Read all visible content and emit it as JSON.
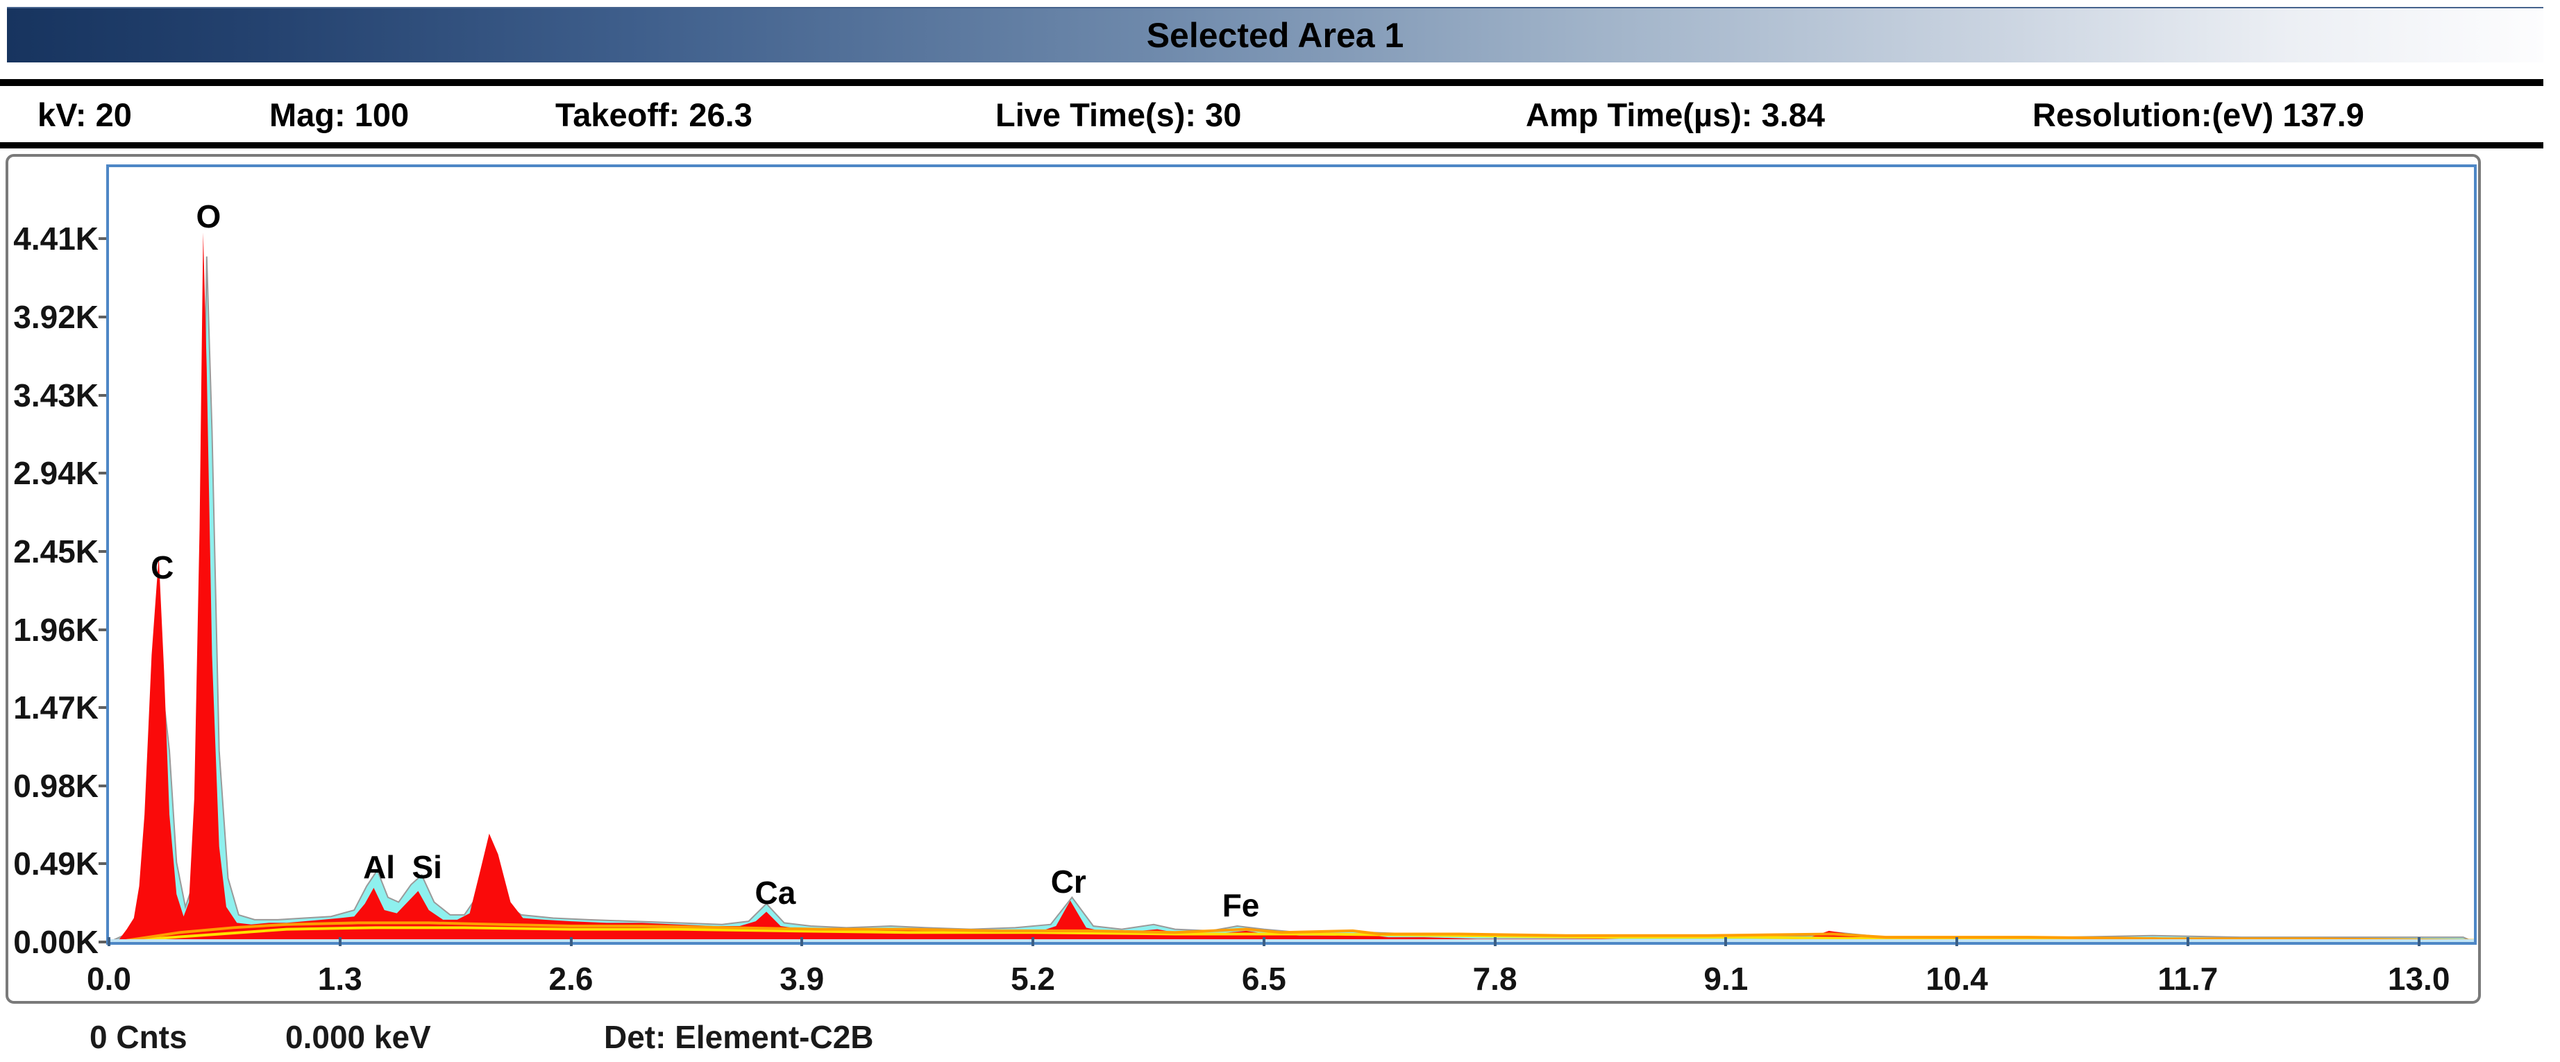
{
  "title": "Selected Area 1",
  "params": [
    "kV: 20",
    "Mag: 100",
    "Takeoff: 26.3",
    "Live Time(s): 30",
    "Amp Time(µs): 3.84",
    "Resolution:(eV) 137.9"
  ],
  "status": {
    "counts": "0 Cnts",
    "energy": "0.000 keV",
    "detector": "Det: Element-C2B"
  },
  "colors": {
    "title_gradient_left": "#17345f",
    "title_gradient_right": "#ffffff",
    "panel_border": "#7a7a7a",
    "plot_border": "#4e87c6",
    "spectrum_red": "#fa0a0a",
    "spectrum_cyan": "#8ef0ee",
    "cyan_edge": "#9a9a9a",
    "background_orange": "#ff9d00",
    "background_yellow": "#ffe100"
  },
  "chart_data": {
    "type": "area",
    "title": "Selected Area 1",
    "xlabel": "",
    "ylabel": "",
    "x_unit": "keV",
    "y_unit": "counts",
    "xlim": [
      0,
      13.31
    ],
    "ylim": [
      0,
      4.86
    ],
    "grid": false,
    "legend": false,
    "x_ticks": [
      {
        "label": "0.0",
        "value": 0
      },
      {
        "label": "1.3",
        "value": 1.3
      },
      {
        "label": "2.6",
        "value": 2.6
      },
      {
        "label": "3.9",
        "value": 3.9
      },
      {
        "label": "5.2",
        "value": 5.2
      },
      {
        "label": "6.5",
        "value": 6.5
      },
      {
        "label": "7.8",
        "value": 7.8
      },
      {
        "label": "9.1",
        "value": 9.1
      },
      {
        "label": "10.4",
        "value": 10.4
      },
      {
        "label": "11.7",
        "value": 11.7
      },
      {
        "label": "13.0",
        "value": 13.0
      }
    ],
    "y_ticks": [
      {
        "label": "4.41K",
        "value": 4.41
      },
      {
        "label": "3.92K",
        "value": 3.92
      },
      {
        "label": "3.43K",
        "value": 3.43
      },
      {
        "label": "2.94K",
        "value": 2.94
      },
      {
        "label": "2.45K",
        "value": 2.45
      },
      {
        "label": "1.96K",
        "value": 1.96
      },
      {
        "label": "1.47K",
        "value": 1.47
      },
      {
        "label": "0.98K",
        "value": 0.98
      },
      {
        "label": "0.49K",
        "value": 0.49
      },
      {
        "label": "0.00K",
        "value": 0
      }
    ],
    "element_labels": [
      {
        "label": "C",
        "kev": 0.3,
        "counts_k": 2.35
      },
      {
        "label": "O",
        "kev": 0.56,
        "counts_k": 4.55
      },
      {
        "label": "Al",
        "kev": 1.52,
        "counts_k": 0.47
      },
      {
        "label": "Si",
        "kev": 1.79,
        "counts_k": 0.47
      },
      {
        "label": "Ca",
        "kev": 3.75,
        "counts_k": 0.31
      },
      {
        "label": "Cr",
        "kev": 5.4,
        "counts_k": 0.38
      },
      {
        "label": "Fe",
        "kev": 6.37,
        "counts_k": 0.23
      }
    ],
    "series": [
      {
        "name": "reference-spectrum-cyan",
        "style": "filled",
        "color": "#8ef0ee",
        "stroke": "#9a9a9a",
        "points": [
          [
            0,
            0
          ],
          [
            0.1,
            0.05
          ],
          [
            0.16,
            0.12
          ],
          [
            0.22,
            0.45
          ],
          [
            0.27,
            1.1
          ],
          [
            0.3,
            1.6
          ],
          [
            0.34,
            1.2
          ],
          [
            0.38,
            0.5
          ],
          [
            0.43,
            0.22
          ],
          [
            0.47,
            0.35
          ],
          [
            0.51,
            1.3
          ],
          [
            0.55,
            4.3
          ],
          [
            0.58,
            3.2
          ],
          [
            0.62,
            1.2
          ],
          [
            0.67,
            0.4
          ],
          [
            0.73,
            0.17
          ],
          [
            0.82,
            0.14
          ],
          [
            0.95,
            0.14
          ],
          [
            1.1,
            0.15
          ],
          [
            1.25,
            0.16
          ],
          [
            1.38,
            0.2
          ],
          [
            1.45,
            0.35
          ],
          [
            1.51,
            0.45
          ],
          [
            1.57,
            0.28
          ],
          [
            1.63,
            0.25
          ],
          [
            1.7,
            0.36
          ],
          [
            1.76,
            0.42
          ],
          [
            1.83,
            0.25
          ],
          [
            1.92,
            0.17
          ],
          [
            2,
            0.17
          ],
          [
            2.08,
            0.3
          ],
          [
            2.15,
            0.4
          ],
          [
            2.22,
            0.25
          ],
          [
            2.32,
            0.17
          ],
          [
            2.5,
            0.15
          ],
          [
            2.7,
            0.14
          ],
          [
            2.95,
            0.13
          ],
          [
            3.2,
            0.12
          ],
          [
            3.45,
            0.11
          ],
          [
            3.6,
            0.13
          ],
          [
            3.7,
            0.24
          ],
          [
            3.8,
            0.12
          ],
          [
            3.95,
            0.1
          ],
          [
            4.15,
            0.09
          ],
          [
            4.4,
            0.1
          ],
          [
            4.6,
            0.09
          ],
          [
            4.85,
            0.08
          ],
          [
            5.1,
            0.09
          ],
          [
            5.3,
            0.11
          ],
          [
            5.42,
            0.28
          ],
          [
            5.54,
            0.1
          ],
          [
            5.7,
            0.08
          ],
          [
            5.88,
            0.11
          ],
          [
            6,
            0.08
          ],
          [
            6.2,
            0.07
          ],
          [
            6.35,
            0.1
          ],
          [
            6.5,
            0.08
          ],
          [
            6.7,
            0.06
          ],
          [
            6.95,
            0.07
          ],
          [
            7.1,
            0.06
          ],
          [
            7.35,
            0.05
          ],
          [
            7.7,
            0.04
          ],
          [
            8.1,
            0.04
          ],
          [
            8.6,
            0.04
          ],
          [
            9.1,
            0.03
          ],
          [
            9.6,
            0.04
          ],
          [
            9.72,
            0.06
          ],
          [
            10,
            0.03
          ],
          [
            10.5,
            0.03
          ],
          [
            11,
            0.03
          ],
          [
            11.5,
            0.04
          ],
          [
            12,
            0.03
          ],
          [
            12.6,
            0.03
          ],
          [
            13.25,
            0.03
          ],
          [
            13.31,
            0
          ]
        ]
      },
      {
        "name": "acquired-spectrum-red",
        "style": "filled",
        "color": "#fa0a0a",
        "stroke": "none",
        "points": [
          [
            0,
            0
          ],
          [
            0.06,
            0.02
          ],
          [
            0.1,
            0.08
          ],
          [
            0.14,
            0.15
          ],
          [
            0.17,
            0.35
          ],
          [
            0.2,
            0.8
          ],
          [
            0.24,
            1.8
          ],
          [
            0.28,
            2.42
          ],
          [
            0.31,
            1.7
          ],
          [
            0.34,
            0.8
          ],
          [
            0.38,
            0.3
          ],
          [
            0.42,
            0.16
          ],
          [
            0.45,
            0.25
          ],
          [
            0.48,
            0.9
          ],
          [
            0.51,
            2.6
          ],
          [
            0.53,
            4.45
          ],
          [
            0.55,
            3.6
          ],
          [
            0.58,
            1.8
          ],
          [
            0.62,
            0.6
          ],
          [
            0.66,
            0.22
          ],
          [
            0.72,
            0.12
          ],
          [
            0.8,
            0.11
          ],
          [
            0.9,
            0.12
          ],
          [
            1,
            0.12
          ],
          [
            1.1,
            0.13
          ],
          [
            1.2,
            0.14
          ],
          [
            1.3,
            0.15
          ],
          [
            1.38,
            0.16
          ],
          [
            1.44,
            0.24
          ],
          [
            1.49,
            0.34
          ],
          [
            1.55,
            0.2
          ],
          [
            1.62,
            0.18
          ],
          [
            1.68,
            0.25
          ],
          [
            1.74,
            0.32
          ],
          [
            1.8,
            0.2
          ],
          [
            1.88,
            0.14
          ],
          [
            1.96,
            0.14
          ],
          [
            2.03,
            0.18
          ],
          [
            2.09,
            0.45
          ],
          [
            2.14,
            0.68
          ],
          [
            2.19,
            0.55
          ],
          [
            2.26,
            0.25
          ],
          [
            2.33,
            0.15
          ],
          [
            2.45,
            0.14
          ],
          [
            2.6,
            0.13
          ],
          [
            2.8,
            0.12
          ],
          [
            3,
            0.12
          ],
          [
            3.2,
            0.11
          ],
          [
            3.4,
            0.1
          ],
          [
            3.55,
            0.1
          ],
          [
            3.64,
            0.13
          ],
          [
            3.7,
            0.19
          ],
          [
            3.78,
            0.1
          ],
          [
            3.9,
            0.08
          ],
          [
            4.1,
            0.08
          ],
          [
            4.3,
            0.07
          ],
          [
            4.5,
            0.08
          ],
          [
            4.7,
            0.07
          ],
          [
            4.9,
            0.07
          ],
          [
            5.1,
            0.07
          ],
          [
            5.25,
            0.07
          ],
          [
            5.33,
            0.1
          ],
          [
            5.41,
            0.26
          ],
          [
            5.5,
            0.09
          ],
          [
            5.62,
            0.06
          ],
          [
            5.8,
            0.07
          ],
          [
            5.9,
            0.08
          ],
          [
            6,
            0.06
          ],
          [
            6.15,
            0.05
          ],
          [
            6.3,
            0.06
          ],
          [
            6.4,
            0.07
          ],
          [
            6.52,
            0.05
          ],
          [
            6.7,
            0.04
          ],
          [
            6.9,
            0.04
          ],
          [
            7.05,
            0.05
          ],
          [
            7.2,
            0.03
          ],
          [
            7.4,
            0.03
          ],
          [
            7.7,
            0.02
          ],
          [
            8,
            0.02
          ],
          [
            8.4,
            0.02
          ],
          [
            8.8,
            0.01
          ],
          [
            9.2,
            0.01
          ],
          [
            9.55,
            0.02
          ],
          [
            9.68,
            0.07
          ],
          [
            9.8,
            0.05
          ],
          [
            9.95,
            0.02
          ],
          [
            10.2,
            0.01
          ],
          [
            10.6,
            0.01
          ],
          [
            11,
            0.01
          ],
          [
            11.3,
            0.02
          ],
          [
            11.5,
            0.03
          ],
          [
            11.7,
            0.02
          ],
          [
            12,
            0.01
          ],
          [
            12.5,
            0.01
          ],
          [
            13,
            0.01
          ],
          [
            13.31,
            0
          ]
        ]
      },
      {
        "name": "background-fit-yellow",
        "style": "line",
        "color": "#ffe100",
        "stroke": "#ffe100",
        "points": [
          [
            0.1,
            0.01
          ],
          [
            0.5,
            0.04
          ],
          [
            1,
            0.08
          ],
          [
            1.5,
            0.09
          ],
          [
            2,
            0.09
          ],
          [
            2.6,
            0.08
          ],
          [
            3.2,
            0.08
          ],
          [
            3.8,
            0.07
          ],
          [
            4.5,
            0.06
          ],
          [
            5.2,
            0.06
          ],
          [
            6,
            0.05
          ],
          [
            6.8,
            0.05
          ],
          [
            7.6,
            0.04
          ],
          [
            8.4,
            0.03
          ],
          [
            9.2,
            0.03
          ],
          [
            10,
            0.02
          ],
          [
            11,
            0.02
          ],
          [
            12,
            0.01
          ],
          [
            13.31,
            0.01
          ]
        ]
      },
      {
        "name": "background-fit-orange",
        "style": "line",
        "color": "#ff9d00",
        "stroke": "#ff9d00",
        "points": [
          [
            0.1,
            0.01
          ],
          [
            0.4,
            0.06
          ],
          [
            0.7,
            0.09
          ],
          [
            1,
            0.11
          ],
          [
            1.4,
            0.12
          ],
          [
            1.8,
            0.12
          ],
          [
            2.2,
            0.11
          ],
          [
            2.6,
            0.1
          ],
          [
            3,
            0.1
          ],
          [
            3.5,
            0.09
          ],
          [
            4,
            0.08
          ],
          [
            4.5,
            0.08
          ],
          [
            5,
            0.07
          ],
          [
            5.5,
            0.07
          ],
          [
            6,
            0.06
          ],
          [
            6.4,
            0.08
          ],
          [
            6.6,
            0.06
          ],
          [
            7,
            0.07
          ],
          [
            7.15,
            0.05
          ],
          [
            7.6,
            0.05
          ],
          [
            8.2,
            0.04
          ],
          [
            9,
            0.04
          ],
          [
            9.7,
            0.05
          ],
          [
            10,
            0.03
          ],
          [
            10.8,
            0.03
          ],
          [
            11.6,
            0.02
          ],
          [
            12.4,
            0.02
          ],
          [
            13.31,
            0.01
          ]
        ]
      }
    ]
  }
}
